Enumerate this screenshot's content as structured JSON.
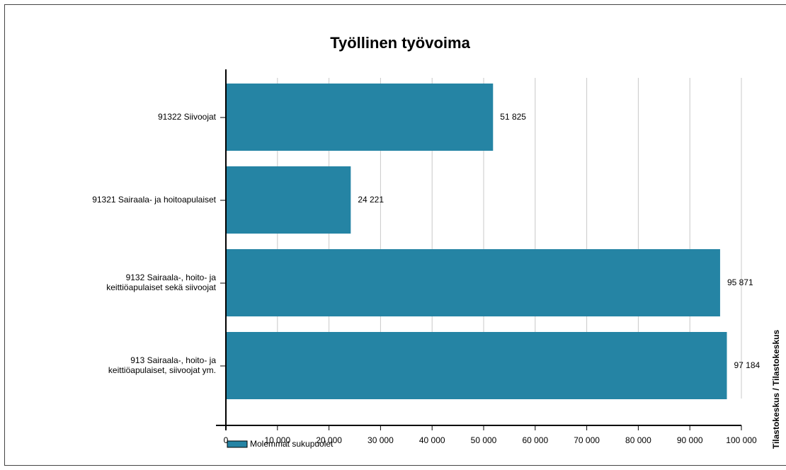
{
  "chart_data": {
    "type": "bar",
    "orientation": "horizontal",
    "title": "Työllinen työvoima",
    "categories": [
      [
        "91322 Siivoojat"
      ],
      [
        "91321 Sairaala- ja hoitoapulaiset"
      ],
      [
        "9132 Sairaala-, hoito- ja",
        "keittiöapulaiset sekä siivoojat"
      ],
      [
        "913 Sairaala-, hoito- ja",
        "keittiöapulaiset, siivoojat ym."
      ]
    ],
    "series": [
      {
        "name": "Molemmat sukupuolet",
        "color": "#2584a4",
        "values": [
          51825,
          24221,
          95871,
          97184
        ],
        "value_labels": [
          "51 825",
          "24 221",
          "95 871",
          "97 184"
        ]
      }
    ],
    "xlim": [
      0,
      100000
    ],
    "xticks": [
      0,
      {
        "value": 10000,
        "label": "10 000"
      },
      {
        "value": 20000,
        "label": "20 000"
      },
      {
        "value": 30000,
        "label": "30 000"
      },
      {
        "value": 40000,
        "label": "40 000"
      },
      {
        "value": 50000,
        "label": "50 000"
      },
      {
        "value": 60000,
        "label": "60 000"
      },
      {
        "value": 70000,
        "label": "70 000"
      },
      {
        "value": 80000,
        "label": "80 000"
      },
      {
        "value": 90000,
        "label": "90 000"
      },
      {
        "value": 100000,
        "label": "100 000"
      }
    ],
    "grid": true,
    "legend": "bottom-left",
    "source": "Tilastokeskus / Tilastokeskus"
  }
}
